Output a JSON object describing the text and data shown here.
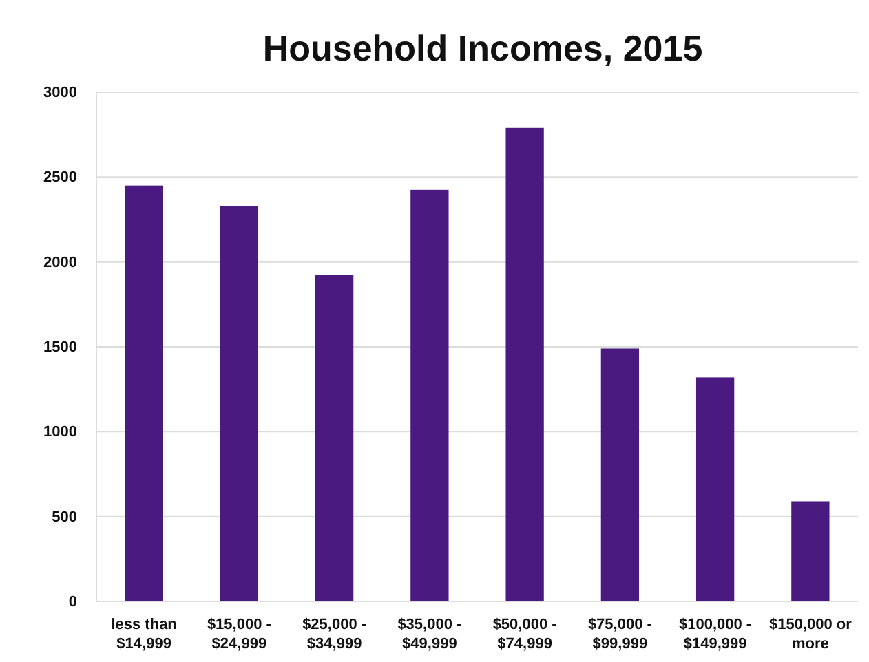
{
  "chart_data": {
    "type": "bar",
    "title": "Household Incomes, 2015",
    "categories": [
      "less than $14,999",
      "$15,000 - $24,999",
      "$25,000 - $34,999",
      "$35,000 - $49,999",
      "$50,000 - $74,999",
      "$75,000 - $99,999",
      "$100,000 - $149,999",
      "$150,000 or more"
    ],
    "values": [
      2450,
      2330,
      1925,
      2425,
      2790,
      1490,
      1320,
      590
    ],
    "color": "#4a1a80",
    "ylim": [
      0,
      3000
    ],
    "yticks": [
      0,
      500,
      1000,
      1500,
      2000,
      2500,
      3000
    ],
    "grid": "y"
  }
}
